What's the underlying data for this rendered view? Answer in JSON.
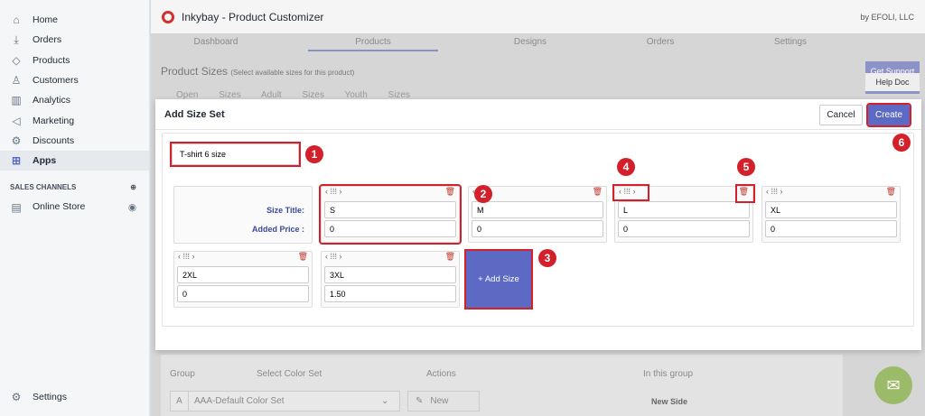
{
  "sidebar": {
    "items": [
      {
        "label": "Home",
        "icon": "home-icon",
        "glyph": "⌂"
      },
      {
        "label": "Orders",
        "icon": "orders-icon",
        "glyph": "⤓"
      },
      {
        "label": "Products",
        "icon": "tag-icon",
        "glyph": "◇"
      },
      {
        "label": "Customers",
        "icon": "person-icon",
        "glyph": "♙"
      },
      {
        "label": "Analytics",
        "icon": "bar-chart-icon",
        "glyph": "▥"
      },
      {
        "label": "Marketing",
        "icon": "megaphone-icon",
        "glyph": "◁"
      },
      {
        "label": "Discounts",
        "icon": "discount-icon",
        "glyph": "⚙"
      },
      {
        "label": "Apps",
        "icon": "apps-icon",
        "glyph": "⊞"
      }
    ],
    "sales_channels": "SALES CHANNELS",
    "online_store": "Online Store",
    "settings": "Settings"
  },
  "header": {
    "title": "Inkybay - Product Customizer",
    "by": "by EFOLI, LLC"
  },
  "tabs": [
    "Dashboard",
    "Products",
    "Designs",
    "Orders",
    "Settings"
  ],
  "bg": {
    "title": "Product Sizes",
    "subtitle": "(Select available sizes for this product)",
    "subtabs": "Open Sizes Adult Sizes Youth Sizes",
    "get_support": "Get Support",
    "help_doc": "Help Doc",
    "group": "Group",
    "select_color_set": "Select Color Set",
    "actions": "Actions",
    "in_this_group": "In this group",
    "group_letter": "A",
    "color_set": "AAA-Default Color Set",
    "new": "New",
    "new_side": "New Side"
  },
  "modal": {
    "title": "Add Size Set",
    "cancel": "Cancel",
    "create": "Create",
    "set_name": "T-shirt 6 size",
    "size_title_label": "Size Title:",
    "added_price_label": "Added Price :",
    "add_size": "+ Add Size",
    "sizes": [
      {
        "title": "S",
        "price": "0"
      },
      {
        "title": "M",
        "price": "0"
      },
      {
        "title": "L",
        "price": "0"
      },
      {
        "title": "XL",
        "price": "0"
      },
      {
        "title": "2XL",
        "price": "0"
      },
      {
        "title": "3XL",
        "price": "1.50"
      }
    ]
  },
  "badges": [
    "1",
    "2",
    "3",
    "4",
    "5",
    "6"
  ],
  "colors": {
    "accent": "#5c6ac4",
    "annotation": "#d3202a"
  }
}
